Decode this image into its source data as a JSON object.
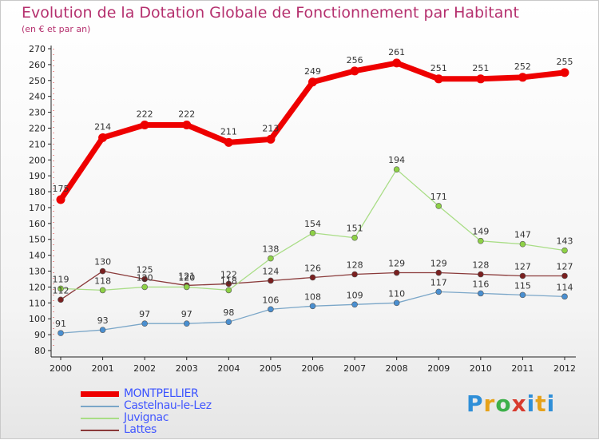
{
  "title": "Evolution de la Dotation Globale de Fonctionnement par Habitant",
  "subtitle": "(en € et par an)",
  "logo_text": "Proxiti",
  "chart_data": {
    "type": "line",
    "title": "Evolution de la Dotation Globale de Fonctionnement par Habitant",
    "ylabel": "(en € et par an)",
    "xlabel": "",
    "grid": false,
    "ylim": [
      80,
      270
    ],
    "yticks": [
      80,
      90,
      100,
      110,
      120,
      130,
      140,
      150,
      160,
      170,
      180,
      190,
      200,
      210,
      220,
      230,
      240,
      250,
      260,
      270
    ],
    "categories": [
      "2000",
      "2001",
      "2002",
      "2003",
      "2004",
      "2005",
      "2006",
      "2007",
      "2008",
      "2009",
      "2010",
      "2011",
      "2012"
    ],
    "legend_position": "bottom-left",
    "series": [
      {
        "name": "MONTPELLIER",
        "color": "#ee0000",
        "marker": "#ee0000",
        "values": [
          175,
          214,
          222,
          222,
          211,
          213,
          249,
          256,
          261,
          251,
          251,
          252,
          255
        ]
      },
      {
        "name": "Castelnau-le-Lez",
        "color": "#7aa6c8",
        "marker": "#4a8fd0",
        "values": [
          91,
          93,
          97,
          97,
          98,
          106,
          108,
          109,
          110,
          117,
          116,
          115,
          114
        ]
      },
      {
        "name": "Juvignac",
        "color": "#a9dd86",
        "marker": "#8ed146",
        "values": [
          119,
          118,
          120,
          120,
          118,
          138,
          154,
          151,
          194,
          171,
          149,
          147,
          143
        ]
      },
      {
        "name": "Lattes",
        "color": "#8a3a3a",
        "marker": "#7a2020",
        "values": [
          112,
          130,
          125,
          121,
          122,
          124,
          126,
          128,
          129,
          129,
          128,
          127,
          127
        ]
      }
    ]
  }
}
